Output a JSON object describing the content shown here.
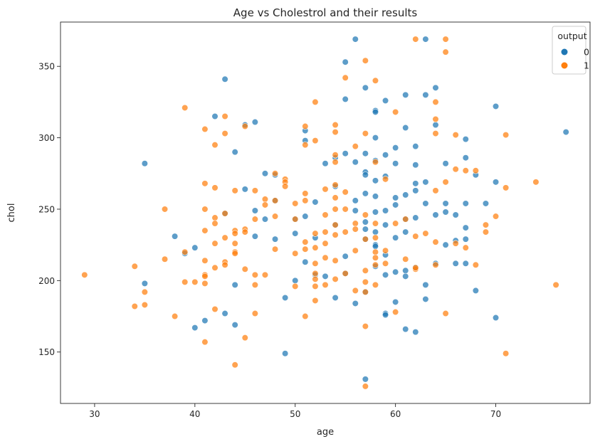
{
  "chart_data": {
    "type": "scatter",
    "title": "Age vs Cholestrol and their results",
    "xlabel": "age",
    "ylabel": "chol",
    "xlim": [
      26.6,
      79.4
    ],
    "ylim": [
      114,
      381
    ],
    "xticks": [
      30,
      40,
      50,
      60,
      70
    ],
    "yticks": [
      150,
      200,
      250,
      300,
      350
    ],
    "grid": false,
    "legend": {
      "title": "output",
      "placement": "top-right"
    },
    "series": [
      {
        "name": "0",
        "color": "#1f77b4",
        "points": [
          [
            35,
            282
          ],
          [
            35,
            198
          ],
          [
            38,
            231
          ],
          [
            39,
            219
          ],
          [
            40,
            223
          ],
          [
            40,
            167
          ],
          [
            41,
            172
          ],
          [
            42,
            315
          ],
          [
            43,
            341
          ],
          [
            43,
            247
          ],
          [
            43,
            177
          ],
          [
            44,
            290
          ],
          [
            44,
            197
          ],
          [
            44,
            169
          ],
          [
            45,
            309
          ],
          [
            45,
            264
          ],
          [
            46,
            311
          ],
          [
            46,
            249
          ],
          [
            46,
            231
          ],
          [
            47,
            275
          ],
          [
            47,
            243
          ],
          [
            48,
            274
          ],
          [
            48,
            256
          ],
          [
            48,
            229
          ],
          [
            49,
            188
          ],
          [
            49,
            149
          ],
          [
            50,
            243
          ],
          [
            50,
            233
          ],
          [
            50,
            200
          ],
          [
            51,
            305
          ],
          [
            51,
            298
          ],
          [
            51,
            245
          ],
          [
            51,
            213
          ],
          [
            52,
            255
          ],
          [
            52,
            230
          ],
          [
            52,
            204
          ],
          [
            53,
            282
          ],
          [
            53,
            203
          ],
          [
            54,
            286
          ],
          [
            54,
            266
          ],
          [
            54,
            239
          ],
          [
            54,
            188
          ],
          [
            55,
            353
          ],
          [
            55,
            327
          ],
          [
            55,
            289
          ],
          [
            55,
            217
          ],
          [
            55,
            205
          ],
          [
            56,
            369
          ],
          [
            56,
            283
          ],
          [
            56,
            256
          ],
          [
            56,
            249
          ],
          [
            56,
            184
          ],
          [
            57,
            335
          ],
          [
            57,
            289
          ],
          [
            57,
            276
          ],
          [
            57,
            274
          ],
          [
            57,
            261
          ],
          [
            57,
            241
          ],
          [
            57,
            236
          ],
          [
            57,
            229
          ],
          [
            57,
            192
          ],
          [
            57,
            131
          ],
          [
            58,
            319
          ],
          [
            58,
            318
          ],
          [
            58,
            300
          ],
          [
            58,
            284
          ],
          [
            58,
            270
          ],
          [
            58,
            259
          ],
          [
            58,
            248
          ],
          [
            58,
            234
          ],
          [
            58,
            225
          ],
          [
            58,
            224
          ],
          [
            58,
            210
          ],
          [
            59,
            326
          ],
          [
            59,
            288
          ],
          [
            59,
            273
          ],
          [
            59,
            249
          ],
          [
            59,
            239
          ],
          [
            59,
            218
          ],
          [
            59,
            204
          ],
          [
            59,
            177
          ],
          [
            59,
            176
          ],
          [
            60,
            293
          ],
          [
            60,
            282
          ],
          [
            60,
            258
          ],
          [
            60,
            253
          ],
          [
            60,
            230
          ],
          [
            60,
            206
          ],
          [
            60,
            185
          ],
          [
            61,
            330
          ],
          [
            61,
            307
          ],
          [
            61,
            260
          ],
          [
            61,
            243
          ],
          [
            61,
            234
          ],
          [
            61,
            207
          ],
          [
            61,
            203
          ],
          [
            61,
            166
          ],
          [
            62,
            294
          ],
          [
            62,
            281
          ],
          [
            62,
            268
          ],
          [
            62,
            263
          ],
          [
            62,
            244
          ],
          [
            62,
            209
          ],
          [
            62,
            164
          ],
          [
            63,
            369
          ],
          [
            63,
            330
          ],
          [
            63,
            269
          ],
          [
            63,
            254
          ],
          [
            63,
            197
          ],
          [
            63,
            187
          ],
          [
            64,
            335
          ],
          [
            64,
            309
          ],
          [
            64,
            246
          ],
          [
            64,
            212
          ],
          [
            65,
            282
          ],
          [
            65,
            254
          ],
          [
            65,
            248
          ],
          [
            65,
            225
          ],
          [
            66,
            246
          ],
          [
            66,
            228
          ],
          [
            66,
            212
          ],
          [
            67,
            299
          ],
          [
            67,
            286
          ],
          [
            67,
            254
          ],
          [
            67,
            237
          ],
          [
            67,
            229
          ],
          [
            67,
            212
          ],
          [
            68,
            274
          ],
          [
            68,
            193
          ],
          [
            69,
            254
          ],
          [
            70,
            322
          ],
          [
            70,
            269
          ],
          [
            70,
            174
          ],
          [
            77,
            304
          ]
        ]
      },
      {
        "name": "1",
        "color": "#ff7f0e",
        "points": [
          [
            29,
            204
          ],
          [
            34,
            210
          ],
          [
            34,
            182
          ],
          [
            35,
            192
          ],
          [
            35,
            183
          ],
          [
            37,
            250
          ],
          [
            37,
            215
          ],
          [
            38,
            175
          ],
          [
            39,
            321
          ],
          [
            39,
            220
          ],
          [
            39,
            199
          ],
          [
            40,
            199
          ],
          [
            41,
            306
          ],
          [
            41,
            268
          ],
          [
            41,
            250
          ],
          [
            41,
            235
          ],
          [
            41,
            214
          ],
          [
            41,
            204
          ],
          [
            41,
            203
          ],
          [
            41,
            198
          ],
          [
            41,
            157
          ],
          [
            42,
            295
          ],
          [
            42,
            265
          ],
          [
            42,
            244
          ],
          [
            42,
            240
          ],
          [
            42,
            226
          ],
          [
            42,
            209
          ],
          [
            42,
            180
          ],
          [
            43,
            315
          ],
          [
            43,
            303
          ],
          [
            43,
            247
          ],
          [
            43,
            230
          ],
          [
            43,
            213
          ],
          [
            43,
            211
          ],
          [
            44,
            263
          ],
          [
            44,
            235
          ],
          [
            44,
            233
          ],
          [
            44,
            226
          ],
          [
            44,
            220
          ],
          [
            44,
            219
          ],
          [
            44,
            141
          ],
          [
            45,
            308
          ],
          [
            45,
            236
          ],
          [
            45,
            234
          ],
          [
            45,
            208
          ],
          [
            45,
            160
          ],
          [
            46,
            263
          ],
          [
            46,
            243
          ],
          [
            46,
            204
          ],
          [
            46,
            197
          ],
          [
            46,
            177
          ],
          [
            47,
            257
          ],
          [
            47,
            253
          ],
          [
            47,
            204
          ],
          [
            48,
            275
          ],
          [
            48,
            256
          ],
          [
            48,
            245
          ],
          [
            48,
            222
          ],
          [
            49,
            271
          ],
          [
            49,
            269
          ],
          [
            49,
            266
          ],
          [
            50,
            254
          ],
          [
            50,
            243
          ],
          [
            50,
            219
          ],
          [
            50,
            196
          ],
          [
            51,
            308
          ],
          [
            51,
            295
          ],
          [
            51,
            261
          ],
          [
            51,
            256
          ],
          [
            51,
            227
          ],
          [
            51,
            222
          ],
          [
            51,
            175
          ],
          [
            52,
            325
          ],
          [
            52,
            298
          ],
          [
            52,
            233
          ],
          [
            52,
            223
          ],
          [
            52,
            212
          ],
          [
            52,
            205
          ],
          [
            52,
            201
          ],
          [
            52,
            196
          ],
          [
            52,
            186
          ],
          [
            53,
            264
          ],
          [
            53,
            246
          ],
          [
            53,
            234
          ],
          [
            53,
            226
          ],
          [
            53,
            216
          ],
          [
            53,
            197
          ],
          [
            54,
            309
          ],
          [
            54,
            304
          ],
          [
            54,
            288
          ],
          [
            54,
            283
          ],
          [
            54,
            267
          ],
          [
            54,
            258
          ],
          [
            54,
            250
          ],
          [
            54,
            239
          ],
          [
            54,
            232
          ],
          [
            54,
            214
          ],
          [
            54,
            201
          ],
          [
            55,
            342
          ],
          [
            55,
            262
          ],
          [
            55,
            250
          ],
          [
            55,
            234
          ],
          [
            55,
            205
          ],
          [
            56,
            294
          ],
          [
            56,
            240
          ],
          [
            56,
            236
          ],
          [
            56,
            221
          ],
          [
            56,
            193
          ],
          [
            57,
            354
          ],
          [
            57,
            303
          ],
          [
            57,
            246
          ],
          [
            57,
            229
          ],
          [
            57,
            207
          ],
          [
            57,
            199
          ],
          [
            57,
            192
          ],
          [
            57,
            168
          ],
          [
            57,
            126
          ],
          [
            58,
            340
          ],
          [
            58,
            283
          ],
          [
            58,
            240
          ],
          [
            58,
            230
          ],
          [
            58,
            220
          ],
          [
            58,
            216
          ],
          [
            58,
            211
          ],
          [
            58,
            197
          ],
          [
            59,
            271
          ],
          [
            59,
            221
          ],
          [
            59,
            212
          ],
          [
            60,
            318
          ],
          [
            60,
            240
          ],
          [
            60,
            178
          ],
          [
            61,
            243
          ],
          [
            61,
            215
          ],
          [
            62,
            369
          ],
          [
            62,
            231
          ],
          [
            62,
            208
          ],
          [
            62,
            209
          ],
          [
            63,
            233
          ],
          [
            64,
            325
          ],
          [
            64,
            313
          ],
          [
            64,
            303
          ],
          [
            64,
            263
          ],
          [
            64,
            227
          ],
          [
            64,
            211
          ],
          [
            65,
            369
          ],
          [
            65,
            360
          ],
          [
            65,
            269
          ],
          [
            65,
            177
          ],
          [
            66,
            302
          ],
          [
            66,
            278
          ],
          [
            66,
            226
          ],
          [
            67,
            277
          ],
          [
            67,
            223
          ],
          [
            68,
            277
          ],
          [
            68,
            211
          ],
          [
            69,
            239
          ],
          [
            69,
            234
          ],
          [
            70,
            245
          ],
          [
            71,
            302
          ],
          [
            71,
            265
          ],
          [
            71,
            149
          ],
          [
            74,
            269
          ],
          [
            76,
            197
          ]
        ]
      }
    ]
  }
}
